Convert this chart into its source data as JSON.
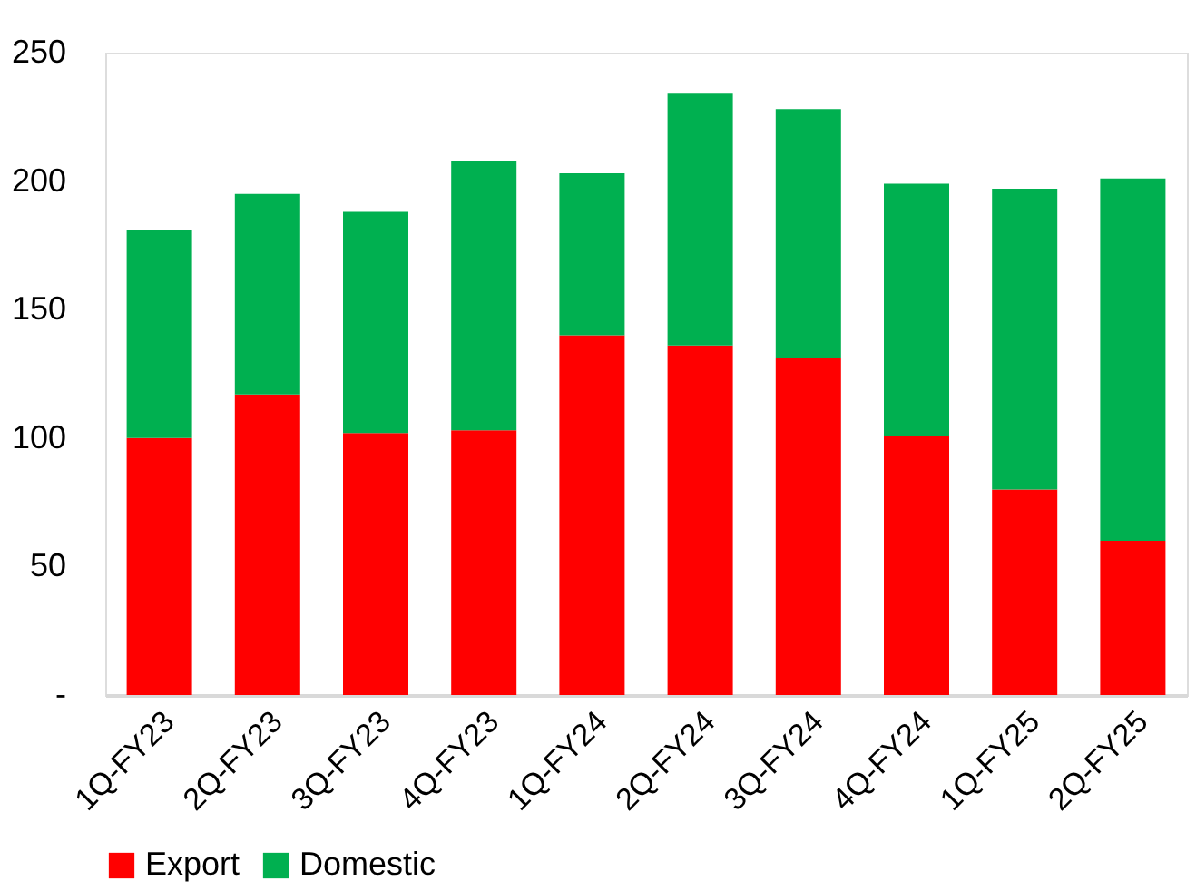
{
  "chart_data": {
    "type": "bar",
    "stacked": true,
    "categories": [
      "1Q-FY23",
      "2Q-FY23",
      "3Q-FY23",
      "4Q-FY23",
      "1Q-FY24",
      "2Q-FY24",
      "3Q-FY24",
      "4Q-FY24",
      "1Q-FY25",
      "2Q-FY25"
    ],
    "series": [
      {
        "name": "Export",
        "color": "#ff0000",
        "values": [
          100,
          117,
          102,
          103,
          140,
          136,
          131,
          101,
          80,
          60
        ]
      },
      {
        "name": "Domestic",
        "color": "#00b050",
        "values": [
          81,
          78,
          86,
          105,
          63,
          98,
          97,
          98,
          117,
          141
        ]
      }
    ],
    "ylim": [
      0,
      250
    ],
    "yticks": [
      {
        "value": 0,
        "label": "-"
      },
      50,
      100,
      150,
      200,
      250
    ],
    "grid": false,
    "legend": "bottom"
  }
}
